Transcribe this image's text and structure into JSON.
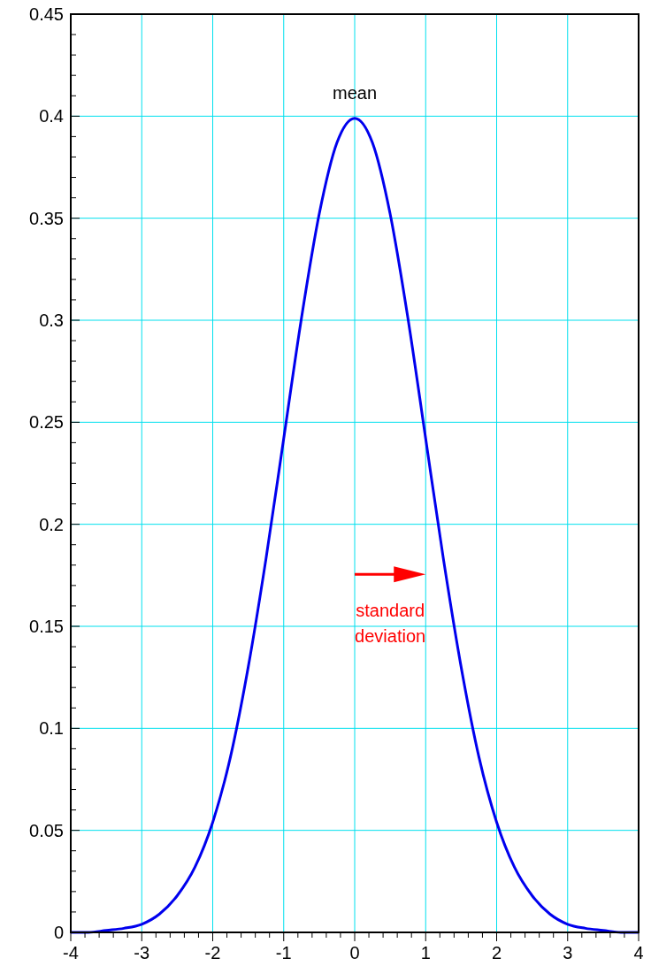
{
  "chart_data": {
    "type": "line",
    "x": [
      -4,
      -3.75,
      -3.5,
      -3.25,
      -3,
      -2.75,
      -2.5,
      -2.25,
      -2,
      -1.75,
      -1.5,
      -1.25,
      -1,
      -0.75,
      -0.5,
      -0.25,
      0,
      0.25,
      0.5,
      0.75,
      1,
      1.25,
      1.5,
      1.75,
      2,
      2.25,
      2.5,
      2.75,
      3,
      3.25,
      3.5,
      3.75,
      4
    ],
    "series": [
      {
        "color": "#0000ee",
        "values": [
          0.0,
          0.0,
          0.001,
          0.002,
          0.004,
          0.009,
          0.018,
          0.032,
          0.054,
          0.086,
          0.13,
          0.183,
          0.242,
          0.301,
          0.352,
          0.387,
          0.399,
          0.387,
          0.352,
          0.301,
          0.242,
          0.183,
          0.13,
          0.086,
          0.054,
          0.032,
          0.018,
          0.009,
          0.004,
          0.002,
          0.001,
          0.0,
          0.0
        ]
      }
    ],
    "xlim": [
      -4,
      4
    ],
    "ylim": [
      0,
      0.45
    ],
    "xticks": [
      -4,
      {
        "value": -3.8,
        "label": null
      },
      {
        "value": -3.6,
        "label": null
      },
      {
        "value": -3.4,
        "label": null
      },
      {
        "value": -3.2,
        "label": null
      },
      -3,
      {
        "value": -2.8,
        "label": null
      },
      {
        "value": -2.6,
        "label": null
      },
      {
        "value": -2.4,
        "label": null
      },
      {
        "value": -2.2,
        "label": null
      },
      -2,
      {
        "value": -1.8,
        "label": null
      },
      {
        "value": -1.6,
        "label": null
      },
      {
        "value": -1.4,
        "label": null
      },
      {
        "value": -1.2,
        "label": null
      },
      -1,
      {
        "value": -0.8,
        "label": null
      },
      {
        "value": -0.6,
        "label": null
      },
      {
        "value": -0.4,
        "label": null
      },
      {
        "value": -0.2,
        "label": null
      },
      0,
      {
        "value": 0.2,
        "label": null
      },
      {
        "value": 0.4,
        "label": null
      },
      {
        "value": 0.6,
        "label": null
      },
      {
        "value": 0.8,
        "label": null
      },
      1,
      {
        "value": 1.2,
        "label": null
      },
      {
        "value": 1.4,
        "label": null
      },
      {
        "value": 1.6,
        "label": null
      },
      {
        "value": 1.8,
        "label": null
      },
      2,
      {
        "value": 2.2,
        "label": null
      },
      {
        "value": 2.4,
        "label": null
      },
      {
        "value": 2.6,
        "label": null
      },
      {
        "value": 2.8,
        "label": null
      },
      3,
      {
        "value": 3.2,
        "label": null
      },
      {
        "value": 3.4,
        "label": null
      },
      {
        "value": 3.6,
        "label": null
      },
      {
        "value": 3.8,
        "label": null
      },
      4
    ],
    "yticks": [
      0,
      {
        "value": 0.01,
        "label": null
      },
      {
        "value": 0.02,
        "label": null
      },
      {
        "value": 0.03,
        "label": null
      },
      {
        "value": 0.04,
        "label": null
      },
      0.05,
      {
        "value": 0.06,
        "label": null
      },
      {
        "value": 0.07,
        "label": null
      },
      {
        "value": 0.08,
        "label": null
      },
      {
        "value": 0.09,
        "label": null
      },
      0.1,
      {
        "value": 0.11,
        "label": null
      },
      {
        "value": 0.12,
        "label": null
      },
      {
        "value": 0.13,
        "label": null
      },
      {
        "value": 0.14,
        "label": null
      },
      0.15,
      {
        "value": 0.16,
        "label": null
      },
      {
        "value": 0.17,
        "label": null
      },
      {
        "value": 0.18,
        "label": null
      },
      {
        "value": 0.19,
        "label": null
      },
      0.2,
      {
        "value": 0.21,
        "label": null
      },
      {
        "value": 0.22,
        "label": null
      },
      {
        "value": 0.23,
        "label": null
      },
      {
        "value": 0.24,
        "label": null
      },
      0.25,
      {
        "value": 0.26,
        "label": null
      },
      {
        "value": 0.27,
        "label": null
      },
      {
        "value": 0.28,
        "label": null
      },
      {
        "value": 0.29,
        "label": null
      },
      0.3,
      {
        "value": 0.31,
        "label": null
      },
      {
        "value": 0.32,
        "label": null
      },
      {
        "value": 0.33,
        "label": null
      },
      {
        "value": 0.34,
        "label": null
      },
      0.35,
      {
        "value": 0.36,
        "label": null
      },
      {
        "value": 0.37,
        "label": null
      },
      {
        "value": 0.38,
        "label": null
      },
      {
        "value": 0.39,
        "label": null
      },
      0.4,
      {
        "value": 0.41,
        "label": null
      },
      {
        "value": 0.42,
        "label": null
      },
      {
        "value": 0.43,
        "label": null
      },
      {
        "value": 0.44,
        "label": null
      },
      0.45
    ],
    "grid": true,
    "marker": "none",
    "line_style": "solid",
    "annotations": [
      {
        "text": "mean",
        "x": 0,
        "y": 0.399
      },
      "standard deviation"
    ]
  }
}
